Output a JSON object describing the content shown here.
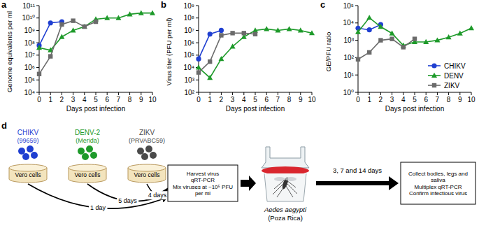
{
  "chart_data": [
    {
      "type": "line",
      "panel_label": "a",
      "x_label": "Days post infection",
      "y_label": "Genome equivalents per ml",
      "x": [
        0,
        1,
        2,
        3,
        4,
        5,
        6,
        7,
        8,
        9,
        10
      ],
      "xlim": [
        0,
        10
      ],
      "xticks": [
        0,
        1,
        2,
        3,
        4,
        5,
        6,
        7,
        8,
        9,
        10
      ],
      "log": "y",
      "ylim": [
        10000,
        100000000000
      ],
      "yticks": [
        {
          "value": 10000,
          "label": "10⁴"
        },
        {
          "value": 100000,
          "label": "10⁵"
        },
        {
          "value": 1000000,
          "label": "10⁶"
        },
        {
          "value": 10000000,
          "label": "10⁷"
        },
        {
          "value": 100000000,
          "label": "10⁸"
        },
        {
          "value": 1000000000,
          "label": "10⁹"
        },
        {
          "value": 10000000000,
          "label": "10¹⁰"
        },
        {
          "value": 100000000000,
          "label": "10¹¹"
        }
      ],
      "series": [
        {
          "color": "#1f3fd1",
          "marker": "circle",
          "values": [
            60000000.0,
            4000000000.0,
            5000000000.0,
            null,
            null,
            null,
            null,
            null,
            null,
            null,
            null
          ]
        },
        {
          "color": "#1e9a2a",
          "marker": "triangle",
          "values": [
            40000000.0,
            25000000.0,
            300000000.0,
            1000000000.0,
            2000000000.0,
            8000000000.0,
            10000000000.0,
            10000000000.0,
            20000000000.0,
            25000000000.0,
            25000000000.0
          ]
        },
        {
          "color": "#6b6b6b",
          "marker": "square",
          "values": [
            300000.0,
            8000000.0,
            3000000000.0,
            6000000000.0,
            2000000000.0,
            5000000000.0,
            null,
            null,
            null,
            null,
            null
          ]
        }
      ]
    },
    {
      "type": "line",
      "panel_label": "b",
      "x_label": "Days post infection",
      "y_label": "Virus titer (PFU per ml)",
      "x": [
        0,
        1,
        2,
        3,
        4,
        5,
        6,
        7,
        8,
        9,
        10
      ],
      "xlim": [
        0,
        10
      ],
      "xticks": [
        0,
        1,
        2,
        3,
        4,
        5,
        6,
        7,
        8,
        9,
        10
      ],
      "log": "y",
      "ylim": [
        100,
        1000000000
      ],
      "yticks": [
        {
          "value": 100,
          "label": "10²"
        },
        {
          "value": 1000,
          "label": "10³"
        },
        {
          "value": 10000,
          "label": "10⁴"
        },
        {
          "value": 100000,
          "label": "10⁵"
        },
        {
          "value": 1000000,
          "label": "10⁶"
        },
        {
          "value": 10000000,
          "label": "10⁷"
        },
        {
          "value": 100000000,
          "label": "10⁸"
        },
        {
          "value": 1000000000,
          "label": "10⁹"
        }
      ],
      "series": [
        {
          "color": "#1f3fd1",
          "marker": "circle",
          "values": [
            50000.0,
            5000000.0,
            10000000.0,
            null,
            null,
            null,
            null,
            null,
            null,
            null,
            null
          ]
        },
        {
          "color": "#1e9a2a",
          "marker": "triangle",
          "values": [
            10000.0,
            1500.0,
            50000.0,
            500000.0,
            3000000.0,
            10000000.0,
            13000000.0,
            10000000.0,
            13000000.0,
            10000000.0,
            6000000.0
          ]
        },
        {
          "color": "#6b6b6b",
          "marker": "square",
          "values": [
            4000.0,
            30000.0,
            4000000.0,
            6000000.0,
            6000000.0,
            5000000.0,
            null,
            null,
            null,
            null,
            null
          ]
        }
      ]
    },
    {
      "type": "line",
      "panel_label": "c",
      "x_label": "Days post infection",
      "y_label": "GE/PFU ratio",
      "x": [
        0,
        1,
        2,
        3,
        4,
        5,
        6,
        7,
        8,
        9,
        10
      ],
      "xlim": [
        0,
        10
      ],
      "xticks": [
        0,
        1,
        2,
        3,
        4,
        5,
        6,
        7,
        8,
        9,
        10
      ],
      "log": "y",
      "ylim": [
        1,
        100000
      ],
      "yticks": [
        {
          "value": 1,
          "label": "10⁰"
        },
        {
          "value": 10,
          "label": "10¹"
        },
        {
          "value": 100,
          "label": "10²"
        },
        {
          "value": 1000,
          "label": "10³"
        },
        {
          "value": 10000,
          "label": "10⁴"
        },
        {
          "value": 100000,
          "label": "10⁵"
        }
      ],
      "legend": "lower right",
      "series": [
        {
          "name": "CHIKV",
          "color": "#1f3fd1",
          "marker": "circle",
          "values": [
            5000.0,
            4000.0,
            8000.0,
            null,
            null,
            null,
            null,
            null,
            null,
            null,
            null
          ]
        },
        {
          "name": "DENV",
          "color": "#1e9a2a",
          "marker": "triangle",
          "values": [
            3000.0,
            20000.0,
            6000.0,
            2500.0,
            500.0,
            800.0,
            800.0,
            1000.0,
            1500.0,
            2500.0,
            5000.0
          ]
        },
        {
          "name": "ZIKV",
          "color": "#6b6b6b",
          "marker": "square",
          "values": [
            80,
            200,
            1000.0,
            1200.0,
            400.0,
            1200.0,
            null,
            null,
            null,
            null,
            null
          ]
        }
      ]
    }
  ],
  "diagram": {
    "panel_label": "d",
    "viruses": [
      {
        "name": "CHIKV",
        "strain": "(99659)",
        "color": "#1f3fd1",
        "cells": "Vero cells",
        "time": "1 day"
      },
      {
        "name": "DENV-2",
        "strain": "(Merida)",
        "color": "#1e9a2a",
        "cells": "Vero cells",
        "time": "5 days"
      },
      {
        "name": "ZIKV",
        "strain": "(PRVABC59)",
        "color": "#4a4a4a",
        "cells": "Vero cells",
        "time": "4 days"
      }
    ],
    "harvest_box": [
      "Harvest virus",
      "qRT-PCR",
      "Mix viruses at ~10⁵ PFU per ml"
    ],
    "mosquito": {
      "species": "Aedes aegypti",
      "strain": "(Poza Rica)"
    },
    "timepoints": "3, 7 and 14 days",
    "collect_box": [
      "Collect bodies, legs and saliva",
      "Multiplex qRT-PCR",
      "Confirm infectious virus"
    ]
  }
}
